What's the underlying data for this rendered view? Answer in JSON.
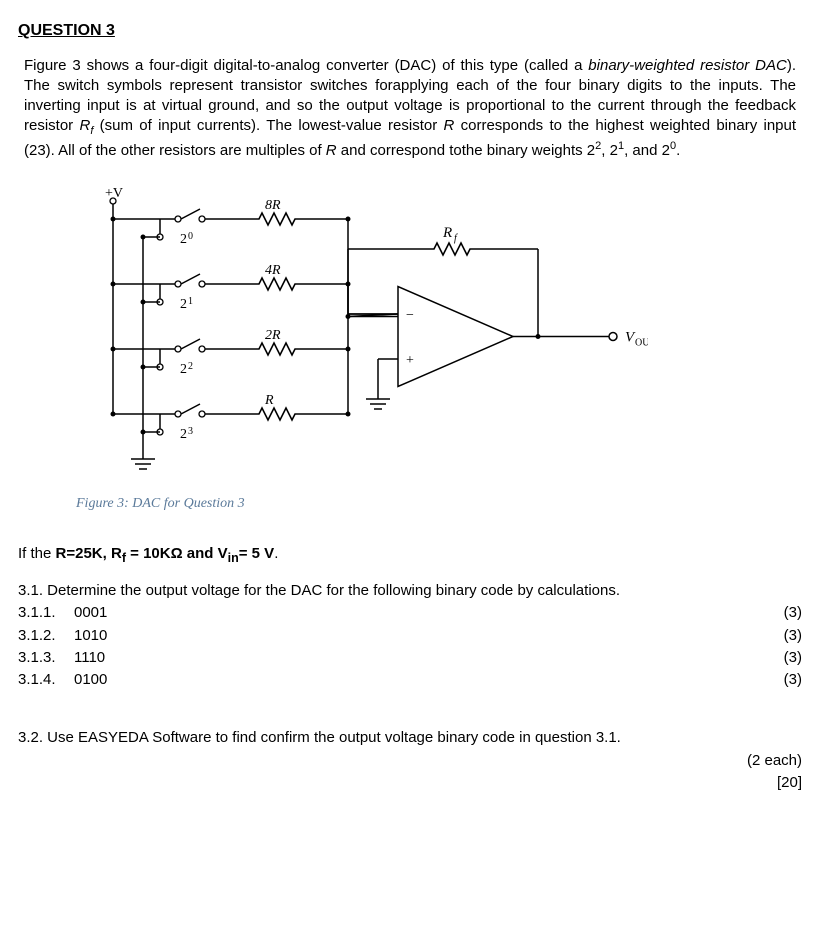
{
  "title": "QUESTION 3",
  "intro_html": "Figure 3 shows a four-digit digital-to-analog converter (DAC) of this type (called a <span class=\"italic\">binary-weighted resistor DAC</span>). The switch symbols represent transistor switches forapplying each of the four binary digits to the inputs. The inverting input is at virtual ground, and so the output voltage is proportional to the current through the feedback resistor <span class=\"italic\">R<sub class=\"sub\">f</sub></span> (sum of input currents). The lowest-value resistor <span class=\"italic\">R</span> corresponds to the highest weighted binary input (23). All of the other resistors are multiples of <span class=\"italic\">R</span> and correspond tothe binary weights 2<sup>2</sup>, 2<sup>1</sup>, and 2<sup>0</sup>.",
  "diagram": {
    "supply": "+V",
    "rows": [
      {
        "r_label": "8R",
        "sw_label": "2",
        "sw_exp": "0"
      },
      {
        "r_label": "4R",
        "sw_label": "2",
        "sw_exp": "1"
      },
      {
        "r_label": "2R",
        "sw_label": "2",
        "sw_exp": "2"
      },
      {
        "r_label": "R",
        "sw_label": "2",
        "sw_exp": "3"
      }
    ],
    "rf_label": "R",
    "rf_sub": "f",
    "opamp_minus": "−",
    "opamp_plus": "+",
    "vout": "V",
    "vout_sub": "OUT"
  },
  "caption": "Figure 3: DAC for Question 3",
  "cond_prefix": "If the  ",
  "cond_bold": "R=25K,  R",
  "cond_bold_sub": "f",
  "cond_bold2": " =  10KΩ and V",
  "cond_bold_sub2": "in",
  "cond_bold3": "= 5 V",
  "cond_period": ".",
  "q31": "3.1. Determine the output voltage for the DAC for the following binary code by calculations.",
  "items": [
    {
      "num": "3.1.1.",
      "code": "0001",
      "marks": "(3)"
    },
    {
      "num": "3.1.2.",
      "code": "1010",
      "marks": "(3)"
    },
    {
      "num": "3.1.3.",
      "code": "1110",
      "marks": "(3)"
    },
    {
      "num": "3.1.4.",
      "code": "0100",
      "marks": "(3)"
    }
  ],
  "q32": "3.2. Use EASYEDA Software to find confirm the output voltage binary code in question 3.1.",
  "q32_marks": "(2 each)",
  "total": "[20]"
}
